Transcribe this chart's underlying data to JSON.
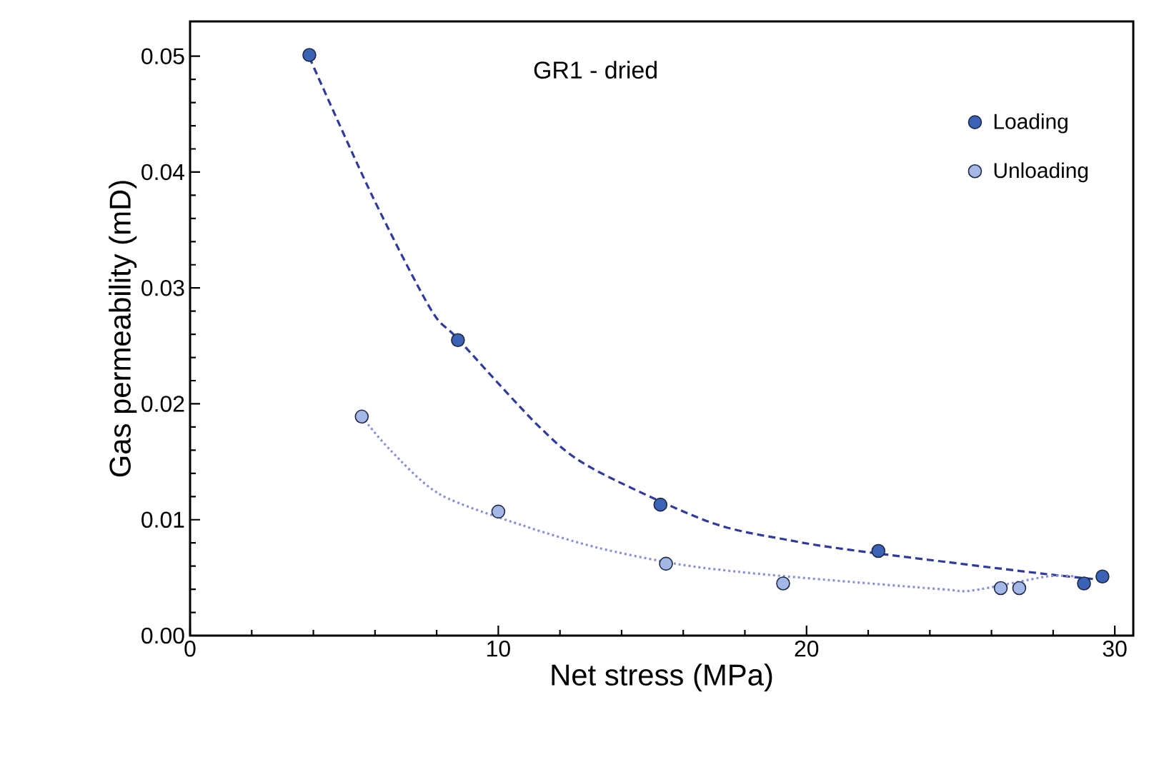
{
  "chart_data": {
    "type": "scatter",
    "title": "GR1 - dried",
    "xlabel": "Net stress (MPa)",
    "ylabel": "Gas permeability (mD)",
    "xlim": [
      0,
      30.6
    ],
    "ylim": [
      0,
      0.053
    ],
    "xticks": [
      0,
      10,
      20,
      30
    ],
    "yticks": [
      {
        "value": 0,
        "label": "0.00"
      },
      {
        "value": 0.01,
        "label": "0.01"
      },
      {
        "value": 0.02,
        "label": "0.02"
      },
      {
        "value": 0.03,
        "label": "0.03"
      },
      {
        "value": 0.04,
        "label": "0.04"
      },
      {
        "value": 0.05,
        "label": "0.05"
      }
    ],
    "grid": false,
    "legend": "top right",
    "marker": "circle",
    "series": [
      {
        "type": "line",
        "color": "#2f3a9c",
        "line_style": "dashed",
        "marker": "none",
        "x": [
          3.87,
          5.9,
          7.8,
          8.69,
          11.3,
          13.0,
          16.85,
          19.5,
          21.4,
          25.0,
          27.8,
          29.6
        ],
        "values": [
          0.0499,
          0.038,
          0.0282,
          0.0256,
          0.0181,
          0.0145,
          0.0098,
          0.0082,
          0.0074,
          0.0062,
          0.0053,
          0.0048
        ]
      },
      {
        "type": "line",
        "color": "#8a8fd6",
        "line_style": "dotted",
        "marker": "none",
        "x": [
          5.57,
          6.5,
          8.1,
          10.8,
          13.2,
          15.75,
          17.8,
          20.7,
          24.4,
          25.4,
          27.8,
          28.7
        ],
        "values": [
          0.0189,
          0.016,
          0.0122,
          0.0095,
          0.0076,
          0.0062,
          0.0055,
          0.0048,
          0.004,
          0.0039,
          0.0051,
          0.0051
        ]
      },
      {
        "name": "Loading",
        "color": "#3a63b5",
        "x": [
          3.87,
          8.69,
          15.26,
          22.33,
          29.0,
          29.6
        ],
        "values": [
          0.0501,
          0.0255,
          0.0113,
          0.0073,
          0.0045,
          0.0051
        ]
      },
      {
        "name": "Unloading",
        "color": "#a3b8e6",
        "x": [
          5.57,
          10.0,
          15.44,
          19.24,
          26.3,
          26.9
        ],
        "values": [
          0.0189,
          0.0107,
          0.0062,
          0.0045,
          0.0041,
          0.0041
        ]
      }
    ]
  }
}
